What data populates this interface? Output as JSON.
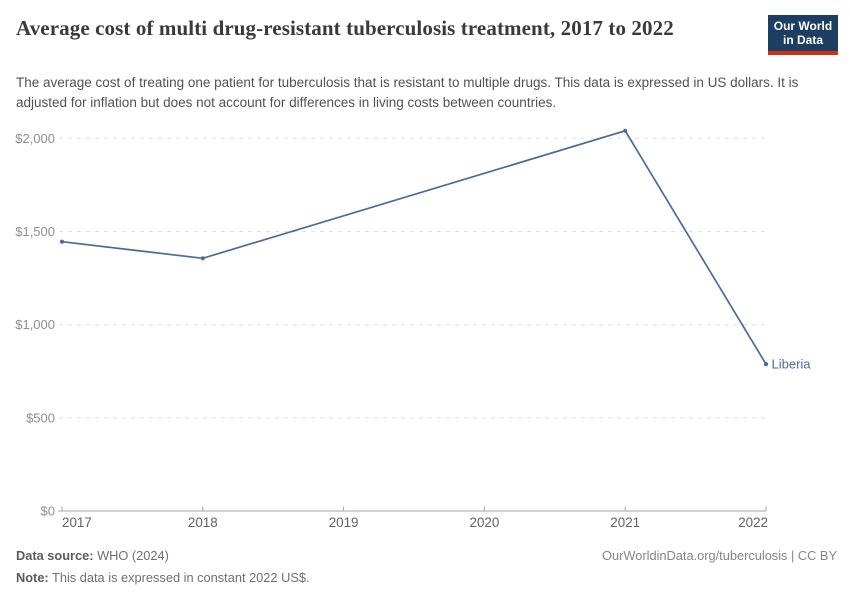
{
  "header": {
    "title": "Average cost of multi drug-resistant tuberculosis treatment, 2017 to 2022",
    "subtitle": "The average cost of treating one patient for tuberculosis that is resistant to multiple drugs. This data is expressed in US dollars. It is adjusted for inflation but does not account for differences in living costs between countries.",
    "logo": {
      "line1": "Our World",
      "line2": "in Data"
    }
  },
  "chart_data": {
    "type": "line",
    "title": "Average cost of multi drug-resistant tuberculosis treatment",
    "time_range": "2017 to 2022",
    "unit": "constant 2022 US$",
    "x": {
      "ticks": [
        2017,
        2018,
        2019,
        2020,
        2021,
        2022
      ],
      "range": [
        2017,
        2022
      ]
    },
    "y": {
      "ticks": [
        0,
        500,
        1000,
        1500,
        2000
      ],
      "tick_labels": [
        "$0",
        "$500",
        "$1,000",
        "$1,500",
        "$2,000"
      ],
      "range": [
        0,
        2000
      ],
      "grid": "dashed horizontal"
    },
    "series": [
      {
        "name": "Liberia",
        "color": "#4b6a9b",
        "points": [
          {
            "year": 2017,
            "value": 1445
          },
          {
            "year": 2018,
            "value": 1356
          },
          {
            "year": 2021,
            "value": 2040
          },
          {
            "year": 2022,
            "value": 788
          }
        ]
      }
    ],
    "legend_position": "end-of-line label"
  },
  "footer": {
    "data_source_label": "Data source:",
    "data_source_value": "WHO (2024)",
    "note_label": "Note:",
    "note_value": "This data is expressed in constant 2022 US$.",
    "attribution": "OurWorldinData.org/tuberculosis | CC BY"
  },
  "colors": {
    "series_blue": "#4b6a9b",
    "grid": "#e0e0e0",
    "axis": "#a5a5a5",
    "y_tick_label": "#8f8f8f",
    "x_tick_label": "#636363",
    "title": "#3a3a3a",
    "subtitle": "#525252",
    "logo_bg": "#1d3d63",
    "logo_bar": "#cf3018"
  }
}
